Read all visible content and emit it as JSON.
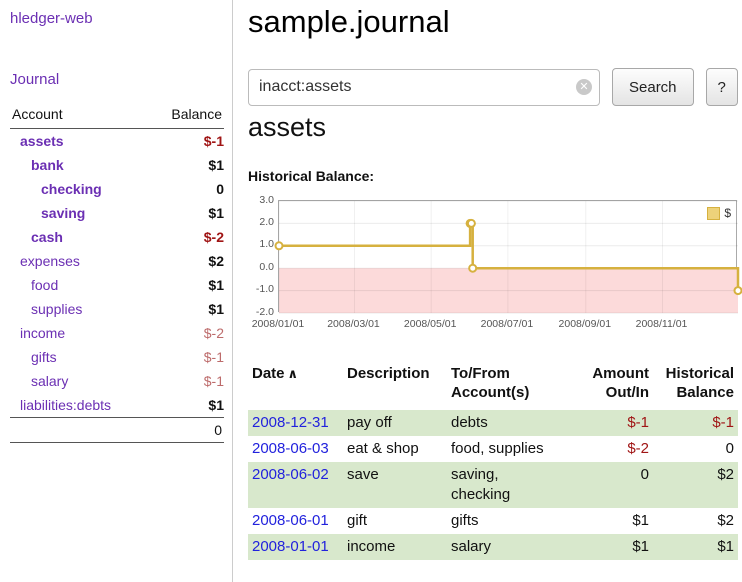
{
  "colors": {
    "accent_purple": "#6b2fb3",
    "link_blue": "#2222dd",
    "negative_strong": "#a01515",
    "negative_soft": "#bd6b6b",
    "row_green": "#d8e8cc",
    "chart_gold": "#d6b13f",
    "chart_negative_region": "#fcdada"
  },
  "sidebar": {
    "app_title": "hledger-web",
    "journal_link": "Journal",
    "accounts": {
      "header_account": "Account",
      "header_balance": "Balance",
      "rows": [
        {
          "name": "assets",
          "balance": "$-1",
          "depth": 1,
          "name_bold": true,
          "balance_bold": true,
          "negative": "strong"
        },
        {
          "name": "bank",
          "balance": "$1",
          "depth": 2,
          "name_bold": true,
          "balance_bold": true,
          "negative": null
        },
        {
          "name": "checking",
          "balance": "0",
          "depth": 3,
          "name_bold": true,
          "balance_bold": true,
          "negative": null
        },
        {
          "name": "saving",
          "balance": "$1",
          "depth": 3,
          "name_bold": true,
          "balance_bold": true,
          "negative": null
        },
        {
          "name": "cash",
          "balance": "$-2",
          "depth": 2,
          "name_bold": true,
          "balance_bold": true,
          "negative": "strong"
        },
        {
          "name": "expenses",
          "balance": "$2",
          "depth": 1,
          "name_bold": false,
          "balance_bold": true,
          "negative": null
        },
        {
          "name": "food",
          "balance": "$1",
          "depth": 2,
          "name_bold": false,
          "balance_bold": true,
          "negative": null
        },
        {
          "name": "supplies",
          "balance": "$1",
          "depth": 2,
          "name_bold": false,
          "balance_bold": true,
          "negative": null
        },
        {
          "name": "income",
          "balance": "$-2",
          "depth": 1,
          "name_bold": false,
          "balance_bold": false,
          "negative": "soft"
        },
        {
          "name": "gifts",
          "balance": "$-1",
          "depth": 2,
          "name_bold": false,
          "balance_bold": false,
          "negative": "soft"
        },
        {
          "name": "salary",
          "balance": "$-1",
          "depth": 2,
          "name_bold": false,
          "balance_bold": false,
          "negative": "soft"
        },
        {
          "name": "liabilities:debts",
          "balance": "$1",
          "depth": 1,
          "name_bold": false,
          "balance_bold": true,
          "negative": null
        }
      ],
      "total": "0"
    }
  },
  "main": {
    "title": "sample.journal",
    "search": {
      "value": "inacct:assets",
      "clear_icon": "✕",
      "search_button": "Search",
      "help_button": "?"
    },
    "account_heading": "assets",
    "chart_label": "Historical Balance:"
  },
  "chart_data": {
    "type": "line",
    "title": "Historical Balance",
    "step": true,
    "legend": {
      "label": "$"
    },
    "x_range": [
      "2008-01-01",
      "2008-12-31"
    ],
    "ylim": [
      -2.0,
      3.0
    ],
    "y_ticks": [
      "3.0",
      "2.0",
      "1.0",
      "0.0",
      "-1.0",
      "-2.0"
    ],
    "x_ticks": [
      "2008/01/01",
      "2008/03/01",
      "2008/05/01",
      "2008/07/01",
      "2008/09/01",
      "2008/11/01"
    ],
    "series": [
      {
        "name": "$",
        "points": [
          {
            "date": "2008-01-01",
            "value": 1
          },
          {
            "date": "2008-06-01",
            "value": 2
          },
          {
            "date": "2008-06-02",
            "value": 2
          },
          {
            "date": "2008-06-03",
            "value": 0
          },
          {
            "date": "2008-12-31",
            "value": -1
          }
        ]
      }
    ]
  },
  "transactions": {
    "headers": {
      "date": "Date",
      "sort_indicator": "∧",
      "description": "Description",
      "accounts": "To/From\nAccount(s)",
      "amount": "Amount\nOut/In",
      "balance": "Historical\nBalance"
    },
    "rows": [
      {
        "date": "2008-12-31",
        "description": "pay off",
        "accounts": "debts",
        "amount": "$-1",
        "amount_negative": true,
        "balance": "$-1",
        "balance_negative": true,
        "shaded": true
      },
      {
        "date": "2008-06-03",
        "description": "eat & shop",
        "accounts": "food, supplies",
        "amount": "$-2",
        "amount_negative": true,
        "balance": "0",
        "balance_negative": false,
        "shaded": false
      },
      {
        "date": "2008-06-02",
        "description": "save",
        "accounts": "saving,\nchecking",
        "amount": "0",
        "amount_negative": false,
        "balance": "$2",
        "balance_negative": false,
        "shaded": true
      },
      {
        "date": "2008-06-01",
        "description": "gift",
        "accounts": "gifts",
        "amount": "$1",
        "amount_negative": false,
        "balance": "$2",
        "balance_negative": false,
        "shaded": false
      },
      {
        "date": "2008-01-01",
        "description": "income",
        "accounts": "salary",
        "amount": "$1",
        "amount_negative": false,
        "balance": "$1",
        "balance_negative": false,
        "shaded": true
      }
    ]
  }
}
